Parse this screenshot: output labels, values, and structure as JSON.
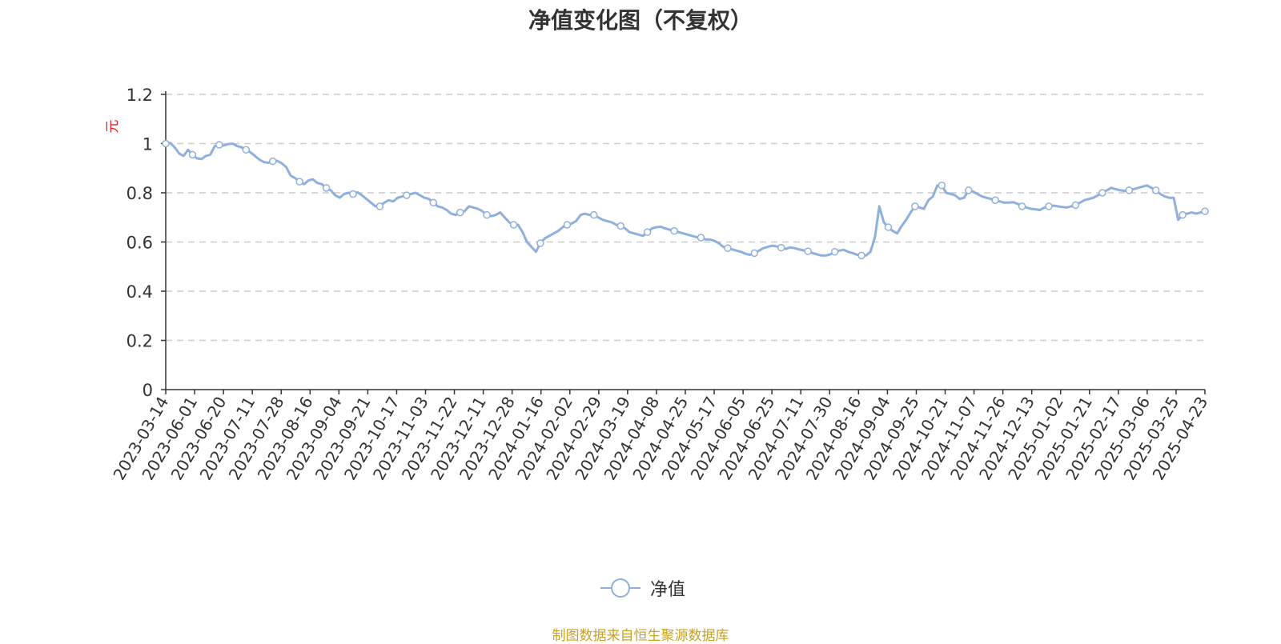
{
  "title": "净值变化图（不复权）",
  "source_note": "制图数据来自恒生聚源数据库",
  "colors": {
    "line": "#8fb0dc",
    "axis": "#333333",
    "grid": "#cccccc",
    "unit": "#e02020",
    "source": "#c9a227"
  },
  "chart_data": {
    "type": "line",
    "ylabel": "元",
    "ylim": [
      0,
      1.2
    ],
    "yticks": [
      "0",
      "0.2",
      "0.4",
      "0.6",
      "0.8",
      "1",
      "1.2"
    ],
    "ytick_values": [
      0,
      0.2,
      0.4,
      0.6,
      0.8,
      1,
      1.2
    ],
    "grid": true,
    "legend_placement": "bottom-center",
    "xtick_labels": [
      "2023-03-14",
      "2023-06-01",
      "2023-06-20",
      "2023-07-11",
      "2023-07-28",
      "2023-08-16",
      "2023-09-04",
      "2023-09-21",
      "2023-10-17",
      "2023-11-03",
      "2023-11-22",
      "2023-12-11",
      "2023-12-28",
      "2024-01-16",
      "2024-02-02",
      "2024-02-29",
      "2024-03-19",
      "2024-04-08",
      "2024-04-25",
      "2024-05-17",
      "2024-06-05",
      "2024-06-25",
      "2024-07-11",
      "2024-07-30",
      "2024-08-16",
      "2024-09-04",
      "2024-09-25",
      "2024-10-21",
      "2024-11-07",
      "2024-11-26",
      "2024-12-13",
      "2025-01-02",
      "2025-01-21",
      "2025-02-17",
      "2025-03-06",
      "2025-03-25",
      "2025-04-23"
    ],
    "series": [
      {
        "name": "净值",
        "values": [
          1.0,
          1.003,
          0.985,
          0.96,
          0.95,
          0.975,
          0.955,
          0.94,
          0.937,
          0.95,
          0.955,
          0.99,
          0.995,
          0.992,
          0.998,
          1.0,
          0.99,
          0.985,
          0.975,
          0.965,
          0.95,
          0.935,
          0.925,
          0.922,
          0.928,
          0.93,
          0.92,
          0.905,
          0.87,
          0.86,
          0.845,
          0.835,
          0.85,
          0.855,
          0.84,
          0.835,
          0.82,
          0.81,
          0.79,
          0.78,
          0.795,
          0.8,
          0.795,
          0.802,
          0.79,
          0.775,
          0.76,
          0.745,
          0.745,
          0.76,
          0.77,
          0.765,
          0.78,
          0.785,
          0.79,
          0.795,
          0.8,
          0.79,
          0.78,
          0.775,
          0.76,
          0.745,
          0.74,
          0.73,
          0.715,
          0.71,
          0.72,
          0.725,
          0.745,
          0.74,
          0.735,
          0.725,
          0.71,
          0.705,
          0.71,
          0.72,
          0.7,
          0.68,
          0.67,
          0.67,
          0.64,
          0.6,
          0.58,
          0.56,
          0.595,
          0.615,
          0.625,
          0.635,
          0.645,
          0.66,
          0.67,
          0.675,
          0.685,
          0.71,
          0.715,
          0.71,
          0.71,
          0.7,
          0.69,
          0.685,
          0.68,
          0.67,
          0.665,
          0.655,
          0.64,
          0.635,
          0.63,
          0.625,
          0.64,
          0.655,
          0.66,
          0.662,
          0.655,
          0.65,
          0.645,
          0.64,
          0.635,
          0.63,
          0.625,
          0.62,
          0.618,
          0.61,
          0.61,
          0.605,
          0.595,
          0.58,
          0.575,
          0.57,
          0.565,
          0.56,
          0.552,
          0.548,
          0.555,
          0.565,
          0.575,
          0.58,
          0.585,
          0.582,
          0.577,
          0.572,
          0.578,
          0.575,
          0.57,
          0.566,
          0.562,
          0.555,
          0.55,
          0.545,
          0.545,
          0.55,
          0.56,
          0.565,
          0.568,
          0.56,
          0.555,
          0.548,
          0.545,
          0.545,
          0.56,
          0.62,
          0.745,
          0.68,
          0.66,
          0.645,
          0.635,
          0.665,
          0.69,
          0.72,
          0.745,
          0.74,
          0.735,
          0.77,
          0.785,
          0.83,
          0.83,
          0.8,
          0.795,
          0.79,
          0.775,
          0.78,
          0.81,
          0.805,
          0.795,
          0.785,
          0.78,
          0.775,
          0.77,
          0.765,
          0.76,
          0.76,
          0.762,
          0.755,
          0.745,
          0.74,
          0.735,
          0.733,
          0.73,
          0.74,
          0.745,
          0.748,
          0.745,
          0.742,
          0.74,
          0.745,
          0.75,
          0.76,
          0.77,
          0.775,
          0.78,
          0.79,
          0.8,
          0.81,
          0.82,
          0.815,
          0.81,
          0.808,
          0.81,
          0.815,
          0.82,
          0.825,
          0.83,
          0.82,
          0.81,
          0.795,
          0.785,
          0.78,
          0.78,
          0.69,
          0.71,
          0.715,
          0.72,
          0.715,
          0.72,
          0.725
        ]
      }
    ]
  }
}
